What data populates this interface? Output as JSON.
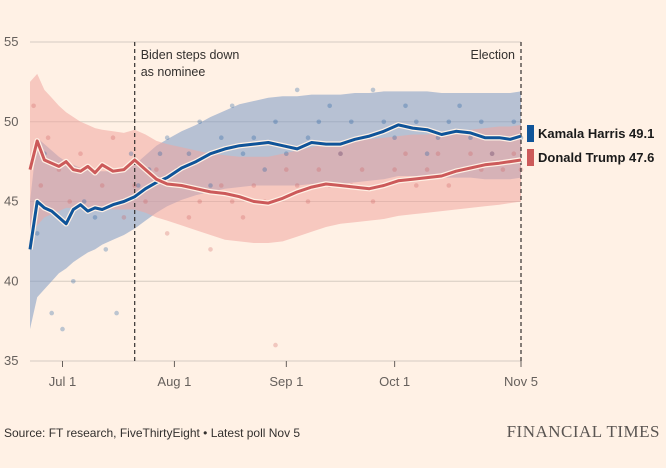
{
  "chart_data": {
    "type": "line",
    "y_domain": [
      35,
      55
    ],
    "y_ticks": [
      {
        "value": 35,
        "label": "35"
      },
      {
        "value": 40,
        "label": "40"
      },
      {
        "value": 45,
        "label": "45"
      },
      {
        "value": 50,
        "label": "50"
      },
      {
        "value": 55,
        "label": "55"
      }
    ],
    "x_domain": [
      "2024-06-22",
      "2024-11-05"
    ],
    "x_ticks": [
      {
        "date": "2024-07-01",
        "label": "Jul 1"
      },
      {
        "date": "2024-08-01",
        "label": "Aug 1"
      },
      {
        "date": "2024-09-01",
        "label": "Sep 1"
      },
      {
        "date": "2024-10-01",
        "label": "Oct 1"
      },
      {
        "date": "2024-11-05",
        "label": "Nov 5"
      }
    ],
    "grid": "horizontal",
    "events": [
      {
        "date": "2024-07-21",
        "label_lines": [
          "Biden steps down",
          "as nominee"
        ]
      },
      {
        "date": "2024-11-05",
        "label_lines": [
          "Election"
        ]
      }
    ],
    "series": [
      {
        "name": "Kamala Harris",
        "final_label": "Kamala Harris 49.1",
        "color": "#0F5499",
        "band_color": "#7C99C4",
        "x": [
          "2024-06-22",
          "2024-06-24",
          "2024-06-26",
          "2024-06-28",
          "2024-06-30",
          "2024-07-02",
          "2024-07-04",
          "2024-07-06",
          "2024-07-08",
          "2024-07-10",
          "2024-07-12",
          "2024-07-15",
          "2024-07-18",
          "2024-07-21",
          "2024-07-24",
          "2024-07-27",
          "2024-07-30",
          "2024-08-03",
          "2024-08-07",
          "2024-08-11",
          "2024-08-15",
          "2024-08-19",
          "2024-08-23",
          "2024-08-27",
          "2024-08-31",
          "2024-09-04",
          "2024-09-08",
          "2024-09-12",
          "2024-09-16",
          "2024-09-20",
          "2024-09-24",
          "2024-09-28",
          "2024-10-02",
          "2024-10-06",
          "2024-10-10",
          "2024-10-14",
          "2024-10-18",
          "2024-10-22",
          "2024-10-26",
          "2024-10-30",
          "2024-11-02",
          "2024-11-05"
        ],
        "values": [
          42.0,
          45.0,
          44.6,
          44.4,
          44.0,
          43.6,
          44.5,
          44.8,
          44.4,
          44.6,
          44.5,
          44.8,
          45.0,
          45.3,
          45.8,
          46.2,
          46.5,
          47.1,
          47.5,
          48.0,
          48.3,
          48.5,
          48.6,
          48.7,
          48.5,
          48.3,
          48.7,
          48.6,
          48.6,
          48.9,
          49.1,
          49.4,
          49.8,
          49.6,
          49.5,
          49.2,
          49.4,
          49.3,
          49.0,
          49.0,
          48.9,
          49.1
        ],
        "lower": [
          37.0,
          39.0,
          39.5,
          40.0,
          40.5,
          40.8,
          41.2,
          41.5,
          41.8,
          42.0,
          42.3,
          42.6,
          42.9,
          43.3,
          43.8,
          44.3,
          44.7,
          45.1,
          45.4,
          45.6,
          45.8,
          45.9,
          46.0,
          46.0,
          46.0,
          46.0,
          46.1,
          46.1,
          46.1,
          46.2,
          46.3,
          46.4,
          46.6,
          46.6,
          46.6,
          46.5,
          46.5,
          46.5,
          46.4,
          46.4,
          46.4,
          46.5
        ],
        "upper": [
          45.0,
          49.0,
          48.6,
          48.2,
          47.8,
          47.5,
          47.3,
          47.1,
          47.0,
          46.9,
          46.9,
          46.9,
          47.0,
          47.3,
          47.9,
          48.5,
          48.9,
          49.4,
          49.8,
          50.3,
          50.7,
          51.1,
          51.3,
          51.5,
          51.6,
          51.6,
          51.7,
          51.7,
          51.7,
          51.8,
          51.8,
          51.9,
          51.9,
          51.9,
          51.9,
          51.8,
          51.8,
          51.8,
          51.8,
          51.8,
          51.8,
          51.9
        ],
        "polls": [
          [
            2,
            43
          ],
          [
            4,
            48
          ],
          [
            6,
            38
          ],
          [
            9,
            37
          ],
          [
            12,
            40
          ],
          [
            15,
            45
          ],
          [
            18,
            44
          ],
          [
            21,
            42
          ],
          [
            24,
            38
          ],
          [
            26,
            47
          ],
          [
            28,
            48
          ],
          [
            30,
            46
          ],
          [
            33,
            47
          ],
          [
            36,
            48
          ],
          [
            38,
            49
          ],
          [
            41,
            47
          ],
          [
            44,
            48
          ],
          [
            47,
            50
          ],
          [
            50,
            46
          ],
          [
            53,
            49
          ],
          [
            56,
            51
          ],
          [
            59,
            48
          ],
          [
            62,
            49
          ],
          [
            65,
            47
          ],
          [
            68,
            50
          ],
          [
            71,
            48
          ],
          [
            74,
            52
          ],
          [
            77,
            49
          ],
          [
            80,
            50
          ],
          [
            83,
            51
          ],
          [
            86,
            48
          ],
          [
            89,
            50
          ],
          [
            92,
            49
          ],
          [
            95,
            52
          ],
          [
            98,
            50
          ],
          [
            101,
            49
          ],
          [
            104,
            51
          ],
          [
            107,
            50
          ],
          [
            110,
            48
          ],
          [
            113,
            49
          ],
          [
            116,
            50
          ],
          [
            119,
            51
          ],
          [
            122,
            49
          ],
          [
            125,
            50
          ],
          [
            128,
            48
          ],
          [
            131,
            49
          ],
          [
            134,
            50
          ],
          [
            136,
            49
          ]
        ]
      },
      {
        "name": "Donald Trump",
        "final_label": "Donald Trump 47.6",
        "color": "#CC5A5A",
        "band_color": "#F0A5A0",
        "x": [
          "2024-06-22",
          "2024-06-24",
          "2024-06-26",
          "2024-06-28",
          "2024-06-30",
          "2024-07-02",
          "2024-07-04",
          "2024-07-06",
          "2024-07-08",
          "2024-07-10",
          "2024-07-12",
          "2024-07-15",
          "2024-07-18",
          "2024-07-21",
          "2024-07-24",
          "2024-07-27",
          "2024-07-30",
          "2024-08-03",
          "2024-08-07",
          "2024-08-11",
          "2024-08-15",
          "2024-08-19",
          "2024-08-23",
          "2024-08-27",
          "2024-08-31",
          "2024-09-04",
          "2024-09-08",
          "2024-09-12",
          "2024-09-16",
          "2024-09-20",
          "2024-09-24",
          "2024-09-28",
          "2024-10-02",
          "2024-10-06",
          "2024-10-10",
          "2024-10-14",
          "2024-10-18",
          "2024-10-22",
          "2024-10-26",
          "2024-10-30",
          "2024-11-02",
          "2024-11-05"
        ],
        "values": [
          47.0,
          48.8,
          47.6,
          47.4,
          47.2,
          47.5,
          47.0,
          46.9,
          47.2,
          46.8,
          47.3,
          46.9,
          47.0,
          47.6,
          47.0,
          46.4,
          46.1,
          46.0,
          45.8,
          45.6,
          45.5,
          45.3,
          45.0,
          44.9,
          45.2,
          45.6,
          45.9,
          46.1,
          46.0,
          45.9,
          45.8,
          46.0,
          46.3,
          46.4,
          46.5,
          46.6,
          46.9,
          47.1,
          47.3,
          47.4,
          47.5,
          47.6
        ],
        "lower": [
          43.0,
          43.5,
          44.0,
          44.2,
          44.4,
          44.6,
          44.6,
          44.6,
          44.6,
          44.6,
          44.6,
          44.5,
          44.5,
          44.5,
          44.3,
          44.0,
          43.8,
          43.5,
          43.2,
          42.9,
          42.6,
          42.5,
          42.4,
          42.4,
          42.5,
          42.8,
          43.1,
          43.4,
          43.6,
          43.7,
          43.8,
          43.9,
          44.1,
          44.2,
          44.3,
          44.4,
          44.5,
          44.6,
          44.7,
          44.8,
          44.9,
          45.0
        ],
        "upper": [
          52.5,
          53.0,
          52.0,
          51.5,
          51.0,
          50.6,
          50.3,
          50.0,
          49.8,
          49.6,
          49.5,
          49.4,
          49.3,
          49.5,
          49.2,
          48.8,
          48.6,
          48.4,
          48.2,
          48.0,
          47.9,
          47.8,
          47.8,
          47.8,
          48.0,
          48.2,
          48.4,
          48.6,
          48.7,
          48.8,
          48.9,
          49.0,
          49.1,
          49.2,
          49.2,
          49.3,
          49.4,
          49.5,
          49.6,
          49.7,
          49.7,
          49.8
        ],
        "polls": [
          [
            1,
            51
          ],
          [
            3,
            46
          ],
          [
            5,
            49
          ],
          [
            8,
            47
          ],
          [
            11,
            45
          ],
          [
            14,
            48
          ],
          [
            17,
            47
          ],
          [
            20,
            46
          ],
          [
            23,
            49
          ],
          [
            26,
            44
          ],
          [
            29,
            46
          ],
          [
            32,
            45
          ],
          [
            35,
            47
          ],
          [
            38,
            43
          ],
          [
            41,
            46
          ],
          [
            44,
            44
          ],
          [
            47,
            45
          ],
          [
            50,
            42
          ],
          [
            53,
            46
          ],
          [
            56,
            45
          ],
          [
            59,
            44
          ],
          [
            62,
            46
          ],
          [
            65,
            45
          ],
          [
            68,
            36
          ],
          [
            71,
            47
          ],
          [
            74,
            46
          ],
          [
            77,
            45
          ],
          [
            80,
            47
          ],
          [
            83,
            46
          ],
          [
            86,
            48
          ],
          [
            89,
            46
          ],
          [
            92,
            47
          ],
          [
            95,
            45
          ],
          [
            98,
            46
          ],
          [
            101,
            47
          ],
          [
            104,
            48
          ],
          [
            107,
            46
          ],
          [
            110,
            47
          ],
          [
            113,
            48
          ],
          [
            116,
            46
          ],
          [
            119,
            47
          ],
          [
            122,
            48
          ],
          [
            125,
            47
          ],
          [
            128,
            48
          ],
          [
            131,
            47
          ],
          [
            134,
            48
          ],
          [
            136,
            47
          ]
        ]
      }
    ]
  },
  "footer": {
    "source": "Source: FT research, FiveThirtyEight • Latest poll Nov 5",
    "logo": "FINANCIAL TIMES"
  }
}
